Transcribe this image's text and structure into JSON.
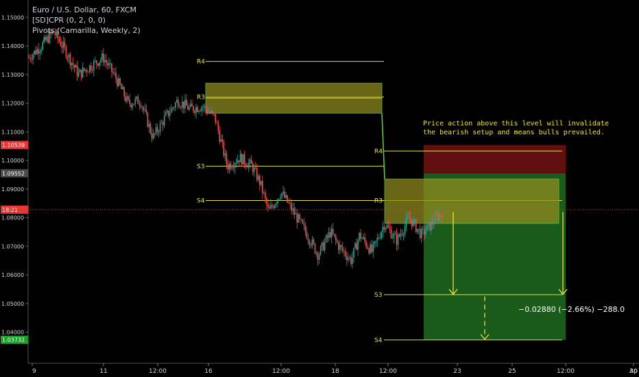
{
  "header": {
    "symbol_line": "Euro / U.S. Dollar, 60, FXCM",
    "indicators": [
      "[SD]CPR (0, 2, 0, 0)",
      "Pivots (Camarilla, Weekly, 2)"
    ]
  },
  "annotation": {
    "lines": [
      "Price action above this level will invalidate",
      "the bearish setup and means bulls prevailed."
    ]
  },
  "measurement": {
    "label": "−0.02880 (−2.66%) −288.0"
  },
  "price_axis": {
    "ticks": [
      "1.15000",
      "1.14000",
      "1.13000",
      "1.12000",
      "1.11000",
      "1.10000",
      "1.09000",
      "1.08000",
      "1.07000",
      "1.06000",
      "1.05000",
      "1.04000"
    ],
    "badges": [
      {
        "text": "1.10539",
        "color": "#e53935",
        "price": 1.10539
      },
      {
        "text": "1.09552",
        "color": "#4a4a4a",
        "price": 1.09552
      },
      {
        "text": "18:21",
        "color": "#e53935",
        "price": 1.0828
      },
      {
        "text": "1.03732",
        "color": "#1e9e2a",
        "price": 1.03732
      }
    ]
  },
  "time_axis": {
    "labels": [
      "9",
      "11",
      "12:00",
      "16",
      "12:00",
      "18",
      "12:00",
      "23",
      "25",
      "12:00",
      "30",
      "Ap"
    ]
  },
  "pivot_labels": {
    "week1": [
      "R4",
      "R3",
      "S3",
      "S4"
    ],
    "week2": [
      "R4",
      "R3",
      "S3",
      "S4"
    ]
  },
  "colors": {
    "up": "#26a69a",
    "down": "#ef5350",
    "pivot": "#e6e33a",
    "cpr": "#6ad13d",
    "target": "#1e6a1e",
    "stop": "#6b1111"
  },
  "chart_data": {
    "type": "candlestick",
    "instrument": "Euro / U.S. Dollar",
    "timeframe": "60",
    "source": "FXCM",
    "y_range": [
      1.03,
      1.155
    ],
    "pivot_levels_week1": {
      "R4": 1.1346,
      "R3": 1.1222,
      "S3": 1.098,
      "S4": 1.086
    },
    "pivot_levels_week2": {
      "R4": 1.1033,
      "R3": 1.086,
      "S3": 1.0531,
      "S4": 1.0373
    },
    "cpr_zones": [
      {
        "high": 1.127,
        "low": 1.1165
      },
      {
        "high": 1.0935,
        "low": 1.078
      }
    ],
    "short_position": {
      "stop_zone": [
        1.0955,
        1.1054
      ],
      "target_zone": [
        1.0373,
        1.0955
      ],
      "move": -0.0288,
      "percent": -2.66,
      "pips": -288.0
    },
    "price_path": [
      [
        0,
        1.136
      ],
      [
        0.03,
        1.14
      ],
      [
        0.06,
        1.145
      ],
      [
        0.09,
        1.138
      ],
      [
        0.12,
        1.13
      ],
      [
        0.15,
        1.133
      ],
      [
        0.18,
        1.136
      ],
      [
        0.21,
        1.129
      ],
      [
        0.24,
        1.12
      ],
      [
        0.27,
        1.121
      ],
      [
        0.3,
        1.108
      ],
      [
        0.33,
        1.115
      ],
      [
        0.36,
        1.121
      ],
      [
        0.39,
        1.118
      ],
      [
        0.42,
        1.119
      ],
      [
        0.45,
        1.115
      ],
      [
        0.48,
        1.098
      ],
      [
        0.51,
        1.101
      ],
      [
        0.54,
        1.098
      ],
      [
        0.56,
        1.092
      ],
      [
        0.58,
        1.082
      ],
      [
        0.61,
        1.089
      ],
      [
        0.64,
        1.082
      ],
      [
        0.67,
        1.075
      ],
      [
        0.7,
        1.067
      ],
      [
        0.73,
        1.075
      ],
      [
        0.75,
        1.07
      ],
      [
        0.78,
        1.065
      ],
      [
        0.8,
        1.074
      ],
      [
        0.83,
        1.068
      ],
      [
        0.86,
        1.078
      ],
      [
        0.89,
        1.072
      ],
      [
        0.92,
        1.08
      ],
      [
        0.95,
        1.074
      ],
      [
        1.0,
        1.082
      ]
    ]
  }
}
